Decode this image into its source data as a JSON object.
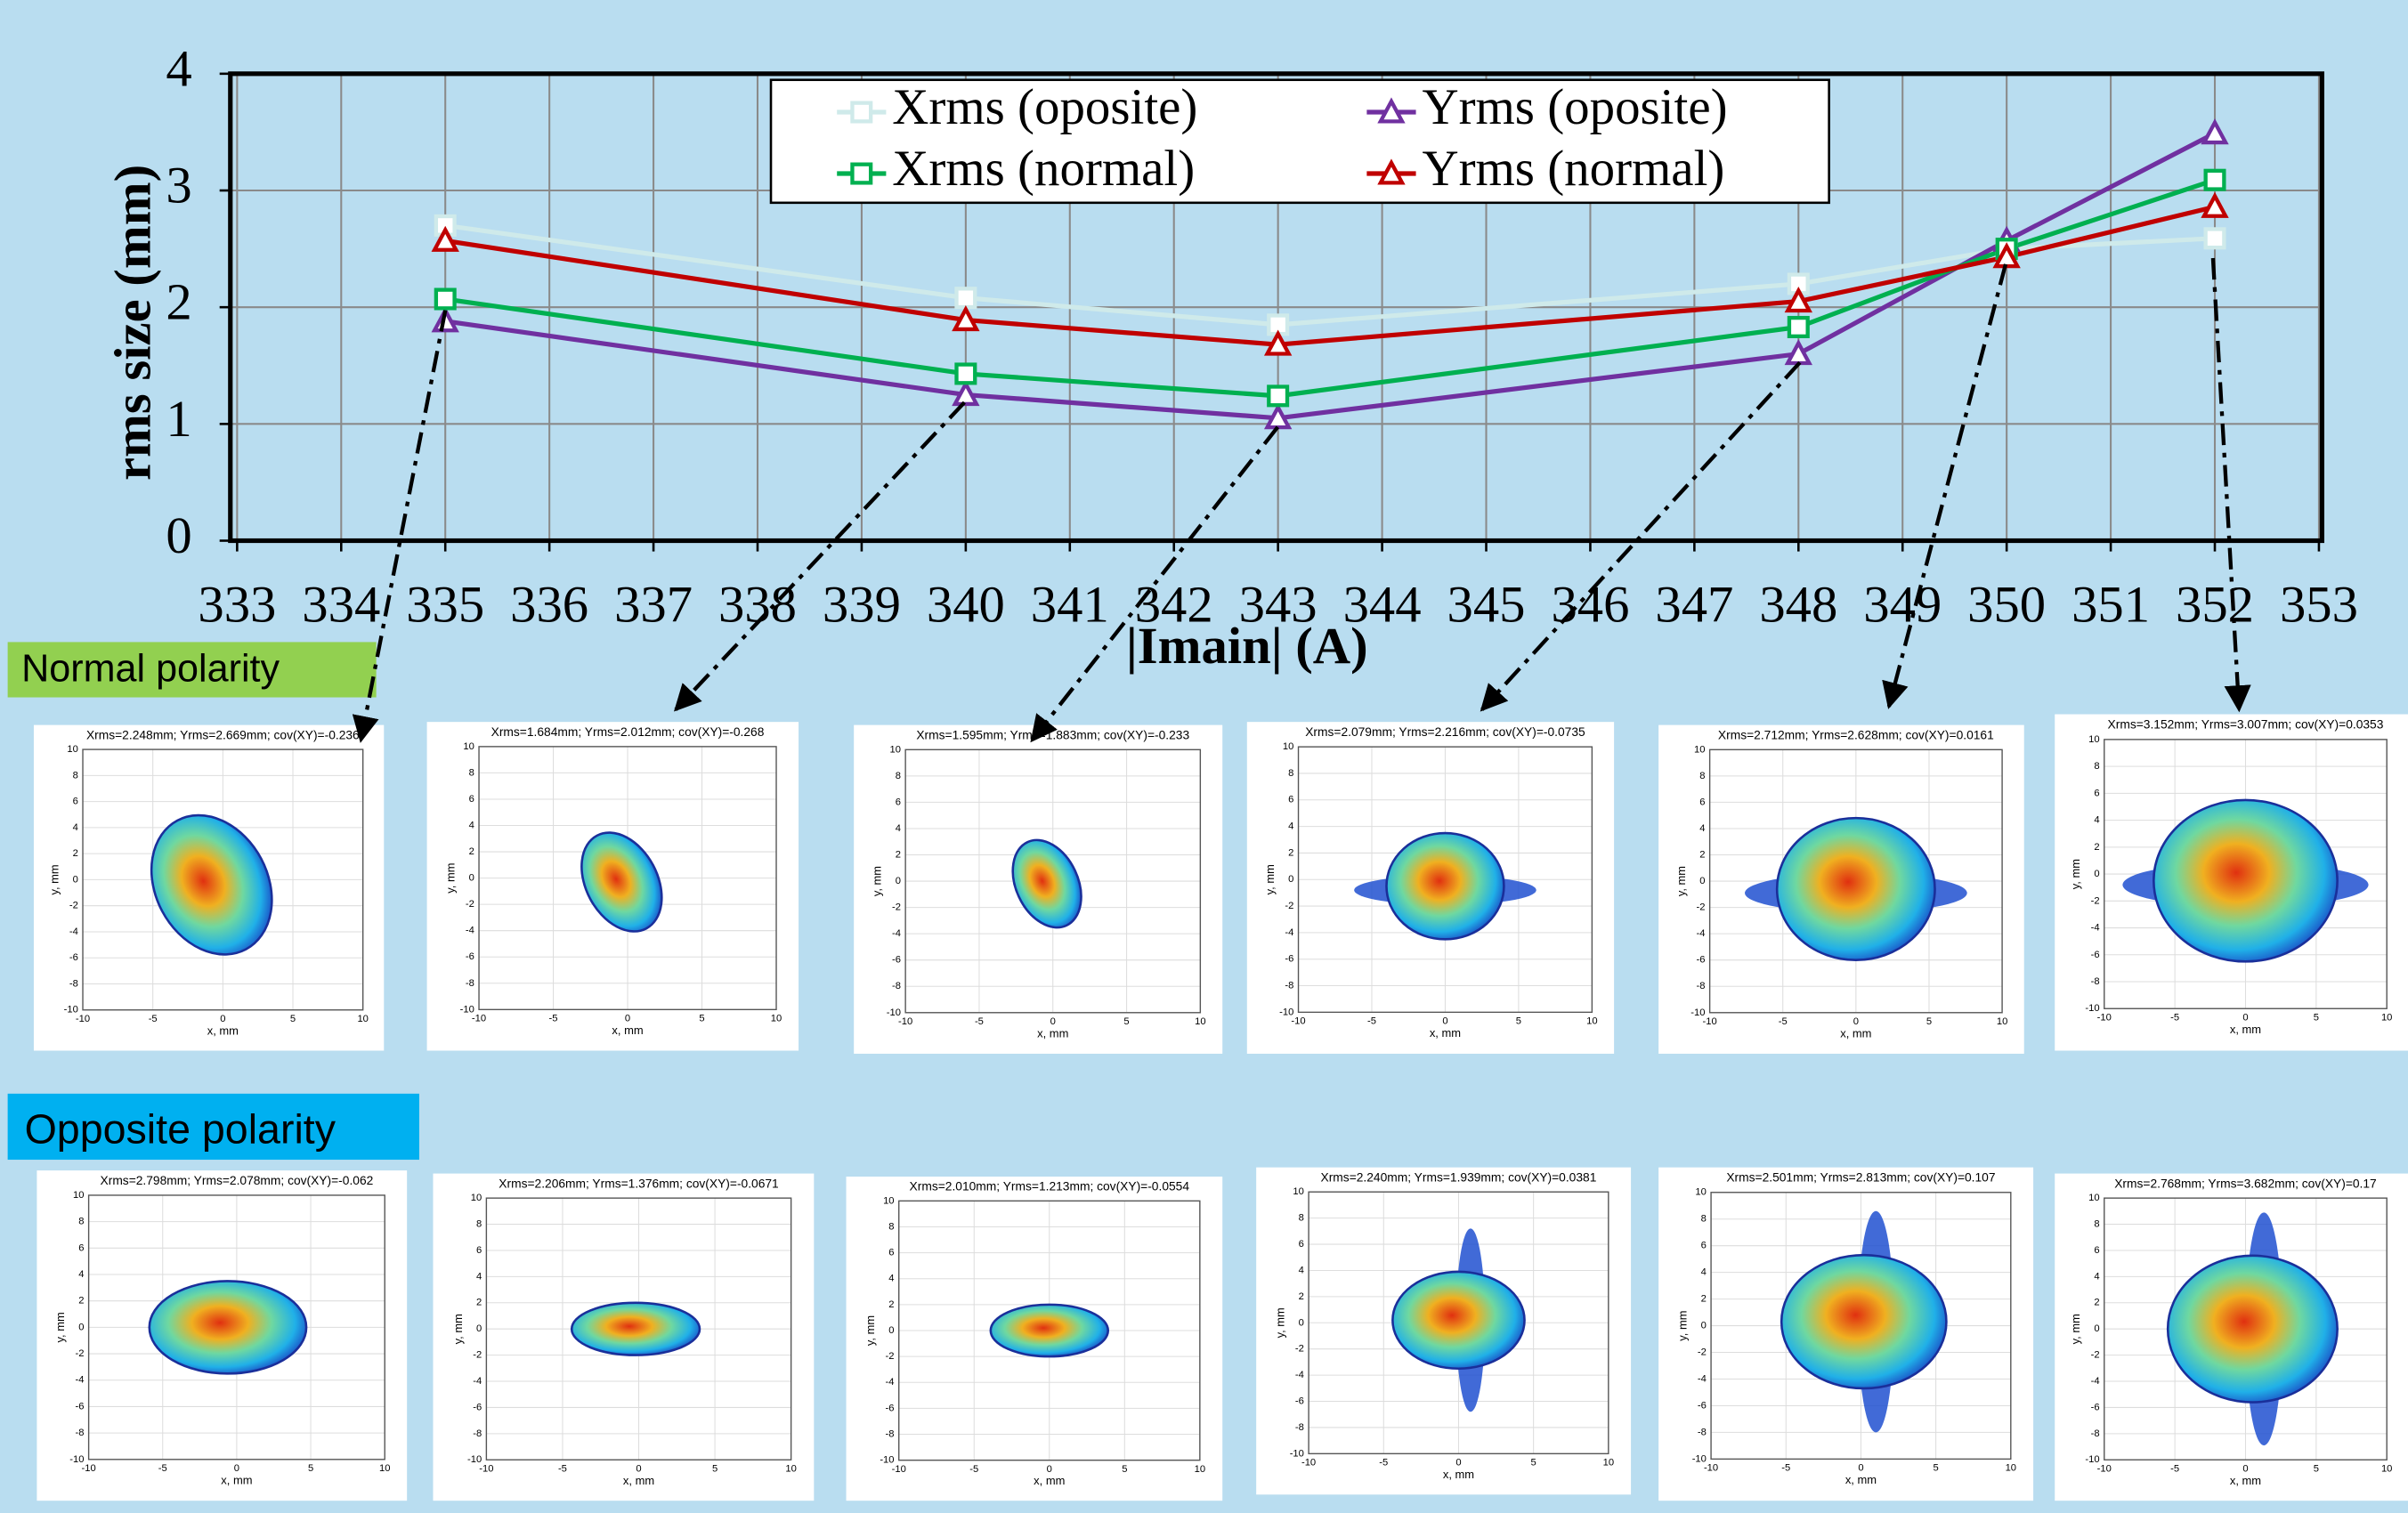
{
  "chart_data": {
    "type": "line",
    "x": [
      335,
      340,
      343,
      348,
      350,
      352
    ],
    "xlim": [
      333,
      353
    ],
    "xticks": [
      333,
      334,
      335,
      336,
      337,
      338,
      339,
      340,
      341,
      342,
      343,
      344,
      345,
      346,
      347,
      348,
      349,
      350,
      351,
      352,
      353
    ],
    "ylim": [
      0,
      4
    ],
    "yticks": [
      0,
      1,
      2,
      3,
      4
    ],
    "xlabel": "|Imain| (A)",
    "ylabel": "rms size (mm)",
    "grid": true,
    "legend": "top",
    "series": [
      {
        "name": "Xrms (oposite)",
        "color": "#cfeaea",
        "marker": "square",
        "values": [
          2.7,
          2.08,
          1.85,
          2.2,
          2.5,
          2.59
        ]
      },
      {
        "name": "Yrms (oposite)",
        "color": "#7030a0",
        "marker": "triangle",
        "values": [
          1.88,
          1.25,
          1.05,
          1.6,
          2.57,
          3.49
        ]
      },
      {
        "name": "Xrms (normal)",
        "color": "#00b050",
        "marker": "square",
        "values": [
          2.07,
          1.43,
          1.24,
          1.83,
          2.5,
          3.09
        ]
      },
      {
        "name": "Yrms (normal)",
        "color": "#c00000",
        "marker": "triangle",
        "values": [
          2.57,
          1.89,
          1.68,
          2.05,
          2.43,
          2.86
        ]
      }
    ]
  },
  "labels": {
    "normal": "Normal polarity",
    "opposite": "Opposite polarity"
  },
  "beam_axes": {
    "xticks": [
      -10,
      -5,
      0,
      5,
      10
    ],
    "yticks": [
      -10,
      -8,
      -6,
      -4,
      -2,
      0,
      2,
      4,
      6,
      8,
      10
    ],
    "xlabel": "x, mm",
    "ylabel": "y, mm"
  },
  "normal_panels": [
    {
      "title": "Xrms=2.248mm; Yrms=2.669mm; cov(XY)=-0.236"
    },
    {
      "title": "Xrms=1.684mm; Yrms=2.012mm; cov(XY)=-0.268"
    },
    {
      "title": "Xrms=1.595mm; Yrms=1.883mm; cov(XY)=-0.233"
    },
    {
      "title": "Xrms=2.079mm; Yrms=2.216mm; cov(XY)=-0.0735"
    },
    {
      "title": "Xrms=2.712mm; Yrms=2.628mm; cov(XY)=0.0161"
    },
    {
      "title": "Xrms=3.152mm; Yrms=3.007mm; cov(XY)=0.0353"
    }
  ],
  "opposite_panels": [
    {
      "title": "Xrms=2.798mm; Yrms=2.078mm; cov(XY)=-0.062"
    },
    {
      "title": "Xrms=2.206mm; Yrms=1.376mm; cov(XY)=-0.0671"
    },
    {
      "title": "Xrms=2.010mm; Yrms=1.213mm; cov(XY)=-0.0554"
    },
    {
      "title": "Xrms=2.240mm; Yrms=1.939mm; cov(XY)=0.0381"
    },
    {
      "title": "Xrms=2.501mm; Yrms=2.813mm; cov(XY)=0.107"
    },
    {
      "title": "Xrms=2.768mm; Yrms=3.682mm; cov(XY)=0.17"
    }
  ]
}
